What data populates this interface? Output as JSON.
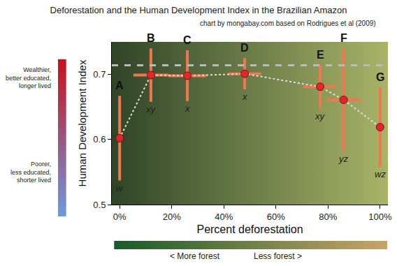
{
  "chart_data": {
    "type": "scatter",
    "title": "Deforestation and the Human Development Index in the Brazilian Amazon",
    "subtitle": "chart by mongabay.com based on Rodrigues et al (2009)",
    "x_label": "Percent deforestation",
    "y_label": "Human Development Index",
    "point_labels": [
      "A",
      "B",
      "C",
      "D",
      "E",
      "F",
      "G"
    ],
    "group_labels": [
      "w",
      "xy",
      "x",
      "x",
      "xy",
      "yz",
      "wz"
    ],
    "x": [
      0,
      12,
      26,
      48,
      77,
      86,
      100
    ],
    "values": [
      0.602,
      0.699,
      0.698,
      0.701,
      0.681,
      0.661,
      0.619
    ],
    "x_error": [
      0,
      6.7,
      7.3,
      6.3,
      6.4,
      6.7,
      0
    ],
    "y_error": [
      0.065,
      0.041,
      0.039,
      0.024,
      0.034,
      0.079,
      0.061
    ],
    "reference_y": 0.714,
    "xlim": [
      -3,
      103
    ],
    "ylim": [
      0.5,
      0.75
    ],
    "xticks": [
      {
        "value": 0,
        "label": "0%"
      },
      {
        "value": 20,
        "label": "20%"
      },
      {
        "value": 40,
        "label": "40%"
      },
      {
        "value": 60,
        "label": "60%"
      },
      {
        "value": 80,
        "label": "80%"
      },
      {
        "value": 100,
        "label": "100%"
      }
    ],
    "yticks": [
      0.5,
      0.6,
      0.7
    ],
    "color": "#e3262c",
    "marker": "circle",
    "line_style": "dotted",
    "grid": false,
    "color_scale_labels": {
      "high": [
        "Wealthier,",
        "better educated,",
        "longer lived"
      ],
      "low": [
        "Poorer,",
        "less educated,",
        "shorter lived"
      ]
    },
    "forest_scale_labels": [
      "< More forest",
      "Less forest >"
    ]
  }
}
